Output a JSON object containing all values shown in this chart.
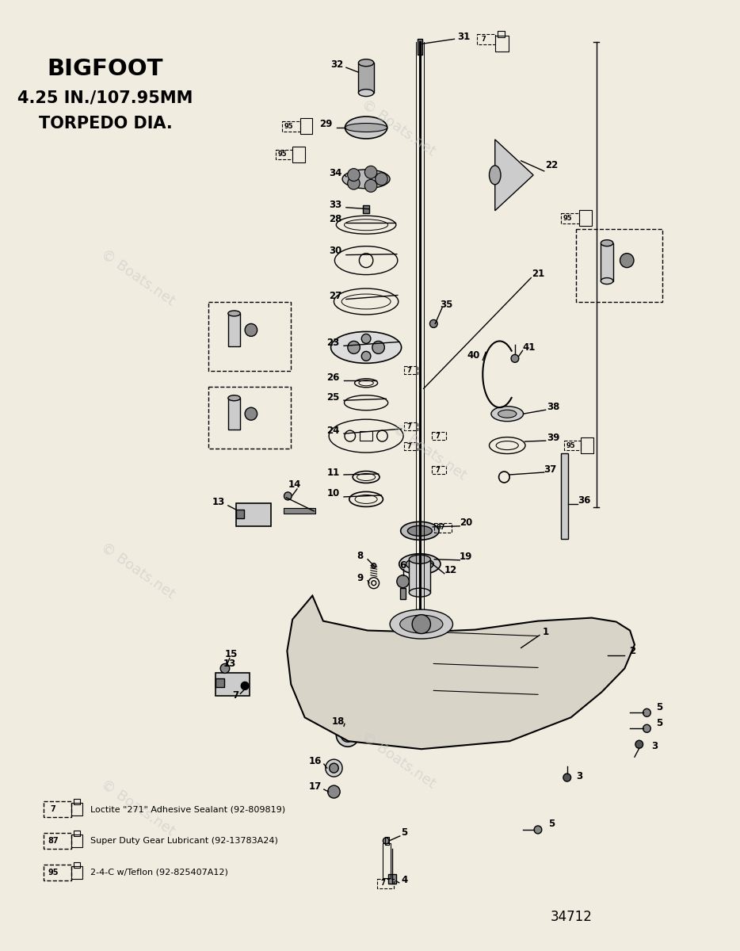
{
  "title_line1": "BIGFOOT",
  "title_line2": "4.25 IN./107.95MM",
  "title_line3": "TORPEDO DIA.",
  "watermark": "© Boats.net",
  "diagram_number": "34712",
  "background_color": "#f0ece0",
  "legend": [
    {
      "symbol": "7",
      "text": "Loctite \"271\" Adhesive Sealant (92-809819)"
    },
    {
      "symbol": "87",
      "text": "Super Duty Gear Lubricant (92-13783A24)"
    },
    {
      "symbol": "95",
      "text": "2-4-C w/Teflon (92-825407A12)"
    }
  ]
}
